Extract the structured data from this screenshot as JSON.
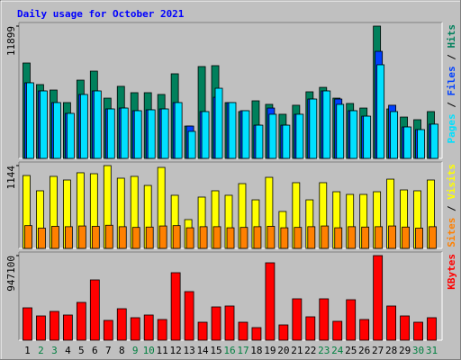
{
  "title": "Daily usage for October 2021",
  "legend_separator": " / ",
  "categories": [
    "1",
    "2",
    "3",
    "4",
    "5",
    "6",
    "7",
    "8",
    "9",
    "10",
    "11",
    "12",
    "13",
    "14",
    "15",
    "16",
    "17",
    "18",
    "19",
    "20",
    "21",
    "22",
    "23",
    "24",
    "25",
    "26",
    "27",
    "28",
    "29",
    "30",
    "31"
  ],
  "category_colors": [
    "#000000",
    "#008040",
    "#008040",
    "#000000",
    "#000000",
    "#000000",
    "#000000",
    "#000000",
    "#008040",
    "#008040",
    "#000000",
    "#000000",
    "#000000",
    "#000000",
    "#000000",
    "#008040",
    "#008040",
    "#000000",
    "#000000",
    "#000000",
    "#000000",
    "#000000",
    "#008040",
    "#008040",
    "#000000",
    "#000000",
    "#000000",
    "#000000",
    "#000000",
    "#008040",
    "#008040"
  ],
  "chart_data": [
    {
      "type": "bar",
      "ylim": [
        0,
        11899
      ],
      "yticks": [
        11899
      ],
      "series": [
        {
          "name": "Hits",
          "color": "#00805c",
          "values": [
            8580,
            6640,
            6150,
            5020,
            7040,
            7850,
            5420,
            6480,
            5910,
            5910,
            5750,
            7610,
            2910,
            8260,
            8340,
            5020,
            4210,
            5180,
            4860,
            3970,
            4780,
            5990,
            6390,
            5420,
            4940,
            4530,
            11899,
            4450,
            3720,
            3480,
            4210
          ]
        },
        {
          "name": "Files",
          "color": "#0040ff",
          "values": [
            6800,
            6070,
            5020,
            4050,
            5750,
            6070,
            4450,
            4530,
            4290,
            4370,
            4450,
            5020,
            2910,
            4210,
            5500,
            5020,
            4290,
            2990,
            4530,
            2990,
            3970,
            5340,
            6070,
            5340,
            4290,
            3800,
            9630,
            4780,
            2830,
            2590,
            3080
          ]
        },
        {
          "name": "Pages",
          "color": "#00e0ff",
          "values": [
            6800,
            6070,
            5020,
            4050,
            5750,
            6070,
            4450,
            4530,
            4290,
            4370,
            4450,
            5020,
            2430,
            4210,
            6310,
            5020,
            4290,
            2990,
            3970,
            2990,
            3970,
            5340,
            6070,
            4860,
            4290,
            3800,
            8420,
            4210,
            2830,
            2590,
            3080
          ]
        }
      ]
    },
    {
      "type": "bar",
      "ylim": [
        0,
        1144
      ],
      "yticks": [
        1144
      ],
      "series": [
        {
          "name": "Visits",
          "color": "#ffff00",
          "values": [
            1007,
            796,
            995,
            945,
            1045,
            1032,
            1144,
            970,
            995,
            870,
            1119,
            734,
            398,
            709,
            796,
            734,
            895,
            671,
            982,
            510,
            908,
            671,
            908,
            783,
            746,
            746,
            783,
            957,
            808,
            796,
            945
          ]
        },
        {
          "name": "Sites",
          "color": "#ff8000",
          "values": [
            315,
            280,
            305,
            300,
            310,
            305,
            320,
            300,
            290,
            295,
            310,
            315,
            285,
            300,
            300,
            285,
            290,
            300,
            305,
            285,
            290,
            300,
            310,
            285,
            300,
            295,
            300,
            310,
            295,
            280,
            300
          ]
        }
      ]
    },
    {
      "type": "bar",
      "ylim": [
        0,
        947100
      ],
      "yticks": [
        947100
      ],
      "series": [
        {
          "name": "KBytes",
          "color": "#ff0000",
          "values": [
            362700,
            272000,
            322400,
            282100,
            423200,
            675100,
            221700,
            352600,
            251900,
            282100,
            231700,
            755700,
            544100,
            201500,
            372800,
            382900,
            201500,
            141100,
            866500,
            171300,
            463500,
            262000,
            463500,
            211600,
            453400,
            231700,
            947100,
            382900,
            272000,
            201500,
            251900
          ]
        }
      ]
    }
  ]
}
